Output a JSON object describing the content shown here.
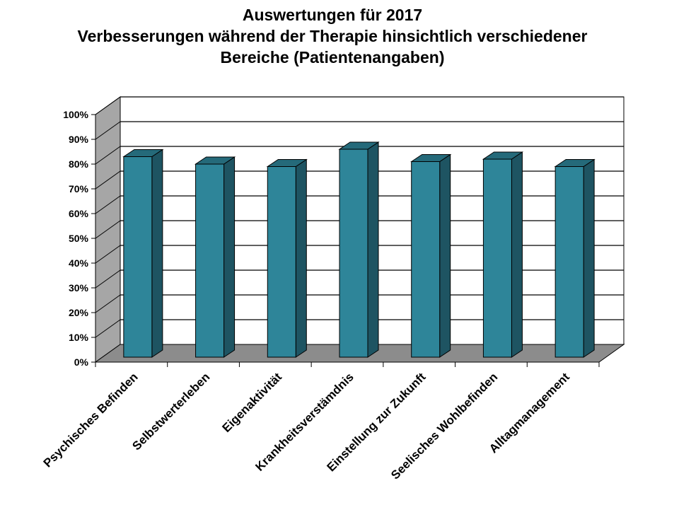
{
  "chart_data": {
    "type": "bar",
    "title": "Auswertungen für 2017",
    "subtitle_lines": [
      "Verbesserungen während der Therapie hinsichtlich verschiedener",
      "Bereiche (Patientenangaben)"
    ],
    "categories": [
      "Psychisches Befinden",
      "Selbstwerterleben",
      "Eigenaktivität",
      "Krankheitsverstämdnis",
      "Einstellung zur Zukunft",
      "Seelisches Wohlbefinden",
      "Alltagmanagement"
    ],
    "values": [
      81,
      78,
      77,
      84,
      79,
      80,
      77
    ],
    "ylim": [
      0,
      100
    ],
    "yticks": [
      "0%",
      "10%",
      "20%",
      "30%",
      "40%",
      "50%",
      "60%",
      "70%",
      "80%",
      "90%",
      "100%"
    ],
    "grid": true,
    "three_d": true,
    "colors": {
      "bar_front": "#2E8599",
      "bar_top": "#256A7A",
      "bar_side": "#1E5462",
      "floor": "#8C8C8C",
      "left_wall": "#A6A6A6",
      "back_wall": "#FFFFFF"
    }
  }
}
